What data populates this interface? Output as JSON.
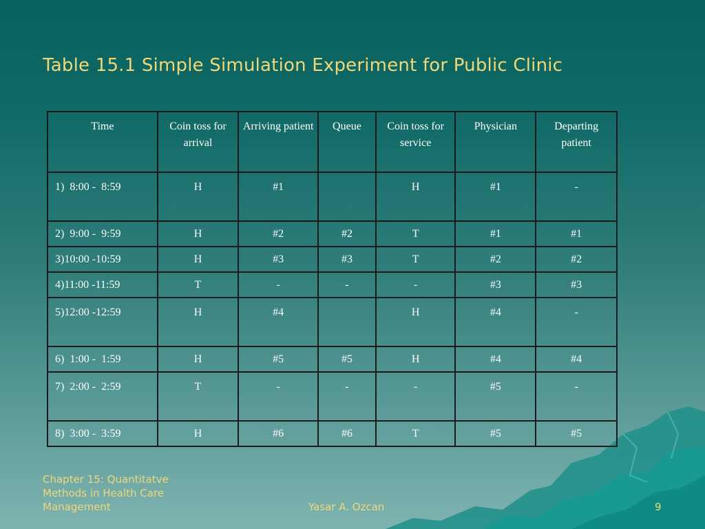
{
  "slide": {
    "title": "Table 15.1 Simple Simulation Experiment for Public Clinic"
  },
  "table": {
    "headers": [
      "Time",
      "Coin toss for arrival",
      "Arriving patient",
      "Queue",
      "Coin toss for service",
      "Physician",
      "Departing patient"
    ],
    "rows": [
      [
        "1)  8:00 -  8:59",
        "H",
        "#1",
        "",
        "H",
        "#1",
        "-"
      ],
      [
        "2)  9:00 -  9:59",
        "H",
        "#2",
        "#2",
        "T",
        "#1",
        "#1"
      ],
      [
        "3)10:00 -10:59",
        "H",
        "#3",
        "#3",
        "T",
        "#2",
        "#2"
      ],
      [
        "4)11:00 -11:59",
        "T",
        "-",
        "-",
        "-",
        "#3",
        "#3"
      ],
      [
        "5)12:00 -12:59",
        "H",
        "#4",
        "",
        "H",
        "#4",
        "-"
      ],
      [
        "6)  1:00 -  1:59",
        "H",
        "#5",
        "#5",
        "H",
        "#4",
        "#4"
      ],
      [
        "7)  2:00 -  2:59",
        "T",
        "-",
        "-",
        "-",
        "#5",
        "-"
      ],
      [
        "8)  3:00 -  3:59",
        "H",
        "#6",
        "#6",
        "T",
        "#5",
        "#5"
      ]
    ]
  },
  "footer": {
    "chapter_line1": "Chapter 15: Quantitatve",
    "chapter_line2": "Methods in Health Care",
    "chapter_line3": "Management",
    "author": "Yasar A. Ozcan",
    "page_number": "9"
  },
  "colors": {
    "title": "#f0d779",
    "table_text": "#ffffff",
    "grid": "#1a1a1a"
  }
}
